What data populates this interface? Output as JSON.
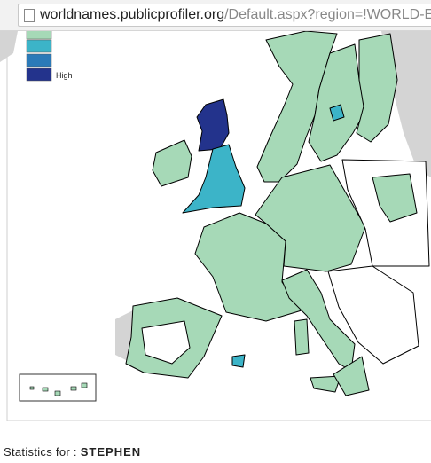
{
  "browser": {
    "url_host": "worldnames.publicprofiler.org",
    "url_path": "/Default.aspx?region=!WORLD-E"
  },
  "legend": {
    "high_label": "High"
  },
  "statistics": {
    "label": "Statistics for :",
    "name": "STEPHEN"
  }
}
